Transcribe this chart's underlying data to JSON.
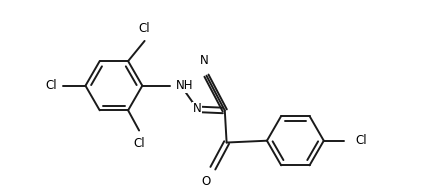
{
  "figsize": [
    4.23,
    1.89
  ],
  "dpi": 100,
  "background": "#ffffff",
  "line_color": "#1a1a1a",
  "line_width": 1.4,
  "font_size": 8.5,
  "label_color": "#000000",
  "xlim": [
    0,
    4.23
  ],
  "ylim": [
    0,
    1.89
  ]
}
